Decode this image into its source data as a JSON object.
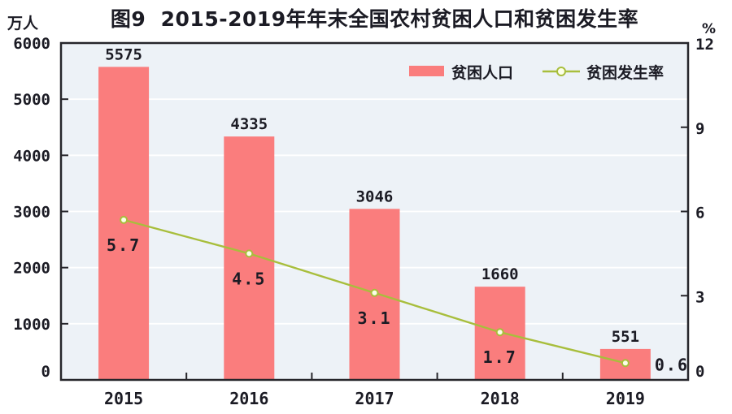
{
  "title": "图9  2015-2019年年末全国农村贫困人口和贫困发生率",
  "left_axis": {
    "unit": "万人",
    "ticks": [
      6000,
      5000,
      4000,
      3000,
      2000,
      1000,
      0
    ]
  },
  "right_axis": {
    "unit": "%",
    "ticks": [
      12,
      9,
      6,
      3,
      0
    ]
  },
  "legend": {
    "items": [
      {
        "label": "贫困人口",
        "marker": "bar-swatch"
      },
      {
        "label": "贫困发生率",
        "marker": "line-circle"
      }
    ]
  },
  "colors": {
    "bar": "#FA7D7D",
    "line": "#A8BE3C",
    "marker_fill": "#FCFFE8",
    "plot_bg": "#EDF2F7",
    "grid": "#FFFFFF",
    "border": "#26262B",
    "text": "#1B1B24"
  },
  "chart_data": {
    "type": "bar+line",
    "title": "图9  2015-2019年年末全国农村贫困人口和贫困发生率",
    "categories": [
      "2015",
      "2016",
      "2017",
      "2018",
      "2019"
    ],
    "series": [
      {
        "name": "贫困人口",
        "type": "bar",
        "axis": "left",
        "values": [
          5575,
          4335,
          3046,
          1660,
          551
        ],
        "data_labels": [
          "5575",
          "4335",
          "3046",
          "1660",
          "551"
        ]
      },
      {
        "name": "贫困发生率",
        "type": "line",
        "axis": "right",
        "values": [
          5.7,
          4.5,
          3.1,
          1.7,
          0.6
        ],
        "data_labels": [
          "5.7",
          "4.5",
          "3.1",
          "1.7",
          "0.6"
        ],
        "label_placement": [
          "below",
          "below",
          "below",
          "below",
          "right"
        ]
      }
    ],
    "ylabel_left": "万人",
    "ylabel_right": "%",
    "ylim_left": [
      0,
      6000
    ],
    "ylim_right": [
      0,
      12
    ],
    "left_tick_step": 1000,
    "right_tick_step": 3,
    "grid": true,
    "legend_position": "top-right-inside"
  }
}
